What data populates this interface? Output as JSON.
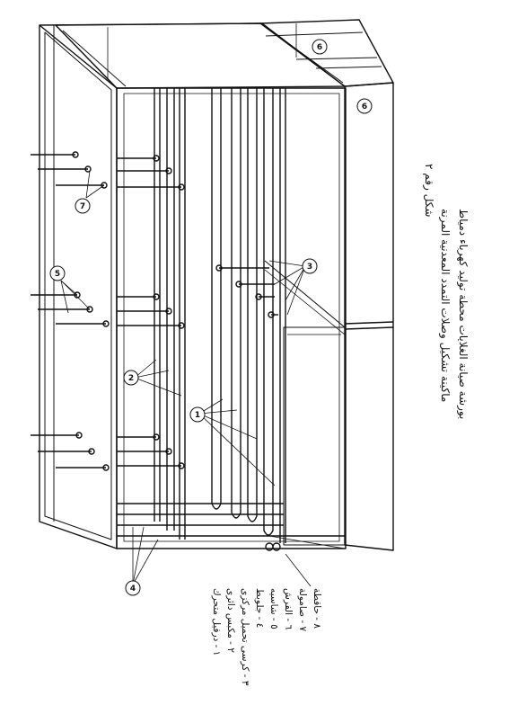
{
  "figure": {
    "label": "شكل رقم ٢",
    "title": "ماكينة تشكيل وصلات التمدد المعدنية المرنة",
    "subtitle": "بورشة صيانة الغلايات  محطة توليد كهرباء دمياط"
  },
  "legend": [
    "١ - درفيل متحرك",
    "٢ - مكبس دائرى",
    "٣ - كرسى تحميل مركزى",
    "٤ - جلوبط",
    "٥ - شاسيه",
    "٦ - الفرش",
    "٧ - صامولة",
    "٨ - حاقطة"
  ],
  "callouts": [
    "1",
    "2",
    "3",
    "4",
    "5",
    "6",
    "6",
    "7"
  ]
}
